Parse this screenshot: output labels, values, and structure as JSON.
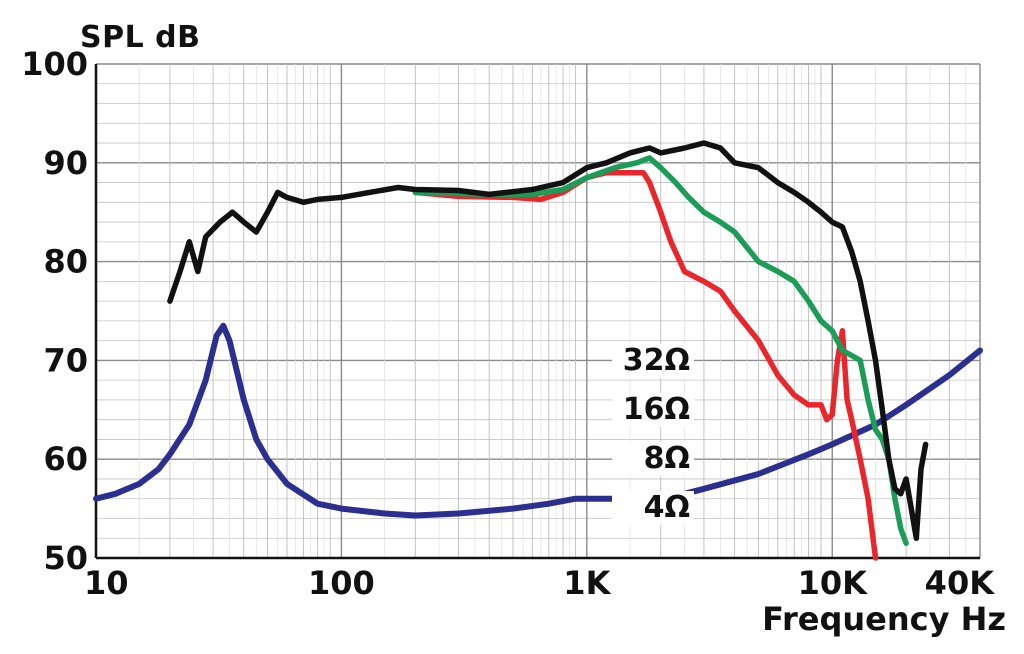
{
  "chart_data": {
    "type": "line",
    "ylabel": "SPL dB",
    "xlabel": "Frequency Hz",
    "x_scale": "log",
    "xlim": [
      10,
      40000
    ],
    "ylim": [
      50,
      100
    ],
    "grid": true,
    "x_ticks": [
      {
        "value": 10,
        "label": "10"
      },
      {
        "value": 100,
        "label": "100"
      },
      {
        "value": 1000,
        "label": "1K"
      },
      {
        "value": 10000,
        "label": "10K"
      },
      {
        "value": 40000,
        "label": "40K"
      }
    ],
    "y_ticks": [
      {
        "value": 50,
        "label": "50"
      },
      {
        "value": 60,
        "label": "60"
      },
      {
        "value": 70,
        "label": "70"
      },
      {
        "value": 80,
        "label": "80"
      },
      {
        "value": 90,
        "label": "90"
      },
      {
        "value": 100,
        "label": "100"
      }
    ],
    "series": [
      {
        "name": "4Ω",
        "color": "#2b2f8f",
        "points": [
          [
            10,
            56
          ],
          [
            12,
            56.5
          ],
          [
            15,
            57.5
          ],
          [
            18,
            59
          ],
          [
            20,
            60.5
          ],
          [
            24,
            63.5
          ],
          [
            28,
            68
          ],
          [
            31,
            72.5
          ],
          [
            33,
            73.5
          ],
          [
            35,
            72
          ],
          [
            40,
            66
          ],
          [
            45,
            62
          ],
          [
            50,
            60
          ],
          [
            60,
            57.5
          ],
          [
            80,
            55.5
          ],
          [
            100,
            55
          ],
          [
            150,
            54.5
          ],
          [
            200,
            54.3
          ],
          [
            300,
            54.5
          ],
          [
            500,
            55
          ],
          [
            700,
            55.5
          ],
          [
            900,
            56
          ],
          [
            1500,
            56
          ],
          [
            2000,
            56
          ],
          [
            2500,
            56.5
          ],
          [
            3000,
            57
          ],
          [
            5000,
            58.5
          ],
          [
            8000,
            60.5
          ],
          [
            10000,
            61.5
          ],
          [
            15000,
            63.5
          ],
          [
            20000,
            65.5
          ],
          [
            30000,
            68.5
          ],
          [
            40000,
            71
          ]
        ]
      },
      {
        "name": "8Ω",
        "color": "#e8262b",
        "points": [
          [
            200,
            87
          ],
          [
            300,
            86.6
          ],
          [
            500,
            86.5
          ],
          [
            650,
            86.3
          ],
          [
            800,
            87
          ],
          [
            1000,
            88.5
          ],
          [
            1200,
            89
          ],
          [
            1500,
            89
          ],
          [
            1700,
            89
          ],
          [
            1800,
            88
          ],
          [
            2000,
            85
          ],
          [
            2200,
            82
          ],
          [
            2500,
            79
          ],
          [
            3000,
            78
          ],
          [
            3500,
            77
          ],
          [
            4000,
            75
          ],
          [
            5000,
            72
          ],
          [
            6000,
            68.5
          ],
          [
            7000,
            66.5
          ],
          [
            8000,
            65.5
          ],
          [
            9000,
            65.5
          ],
          [
            9500,
            64
          ],
          [
            10000,
            64.5
          ],
          [
            10500,
            70
          ],
          [
            11000,
            73
          ],
          [
            11500,
            66
          ],
          [
            12000,
            64
          ],
          [
            13000,
            60
          ],
          [
            14000,
            56
          ],
          [
            15000,
            50
          ]
        ]
      },
      {
        "name": "16Ω",
        "color": "#1c9d57",
        "points": [
          [
            200,
            87
          ],
          [
            400,
            86.8
          ],
          [
            600,
            86.8
          ],
          [
            800,
            87.3
          ],
          [
            1000,
            88.5
          ],
          [
            1300,
            89.5
          ],
          [
            1600,
            90
          ],
          [
            1800,
            90.5
          ],
          [
            2000,
            89.5
          ],
          [
            2300,
            88
          ],
          [
            2600,
            86.5
          ],
          [
            3000,
            85
          ],
          [
            3500,
            84
          ],
          [
            4000,
            83
          ],
          [
            5000,
            80
          ],
          [
            6000,
            79
          ],
          [
            7000,
            78
          ],
          [
            8000,
            76
          ],
          [
            9000,
            74
          ],
          [
            10000,
            73
          ],
          [
            11000,
            71
          ],
          [
            12000,
            70.5
          ],
          [
            13000,
            70
          ],
          [
            14000,
            66
          ],
          [
            15000,
            63
          ],
          [
            16000,
            62
          ],
          [
            17000,
            60
          ],
          [
            18000,
            56
          ],
          [
            19000,
            53
          ],
          [
            20000,
            51.5
          ]
        ]
      },
      {
        "name": "32Ω",
        "color": "#111111",
        "points": [
          [
            20,
            76
          ],
          [
            22,
            79
          ],
          [
            24,
            82
          ],
          [
            26,
            79
          ],
          [
            28,
            82.5
          ],
          [
            32,
            84
          ],
          [
            36,
            85
          ],
          [
            40,
            84
          ],
          [
            45,
            83
          ],
          [
            50,
            85
          ],
          [
            55,
            87
          ],
          [
            60,
            86.5
          ],
          [
            70,
            86
          ],
          [
            80,
            86.3
          ],
          [
            100,
            86.5
          ],
          [
            130,
            87
          ],
          [
            170,
            87.5
          ],
          [
            200,
            87.3
          ],
          [
            300,
            87.2
          ],
          [
            400,
            86.8
          ],
          [
            600,
            87.3
          ],
          [
            800,
            88
          ],
          [
            1000,
            89.5
          ],
          [
            1200,
            90
          ],
          [
            1500,
            91
          ],
          [
            1800,
            91.5
          ],
          [
            2000,
            91
          ],
          [
            2500,
            91.5
          ],
          [
            3000,
            92
          ],
          [
            3500,
            91.5
          ],
          [
            4000,
            90
          ],
          [
            5000,
            89.5
          ],
          [
            6000,
            88
          ],
          [
            7000,
            87
          ],
          [
            8000,
            86
          ],
          [
            9000,
            85
          ],
          [
            10000,
            84
          ],
          [
            11000,
            83.5
          ],
          [
            12000,
            81
          ],
          [
            13000,
            78
          ],
          [
            14000,
            74
          ],
          [
            15000,
            70
          ],
          [
            16000,
            65
          ],
          [
            17000,
            60
          ],
          [
            18000,
            57
          ],
          [
            19000,
            56.5
          ],
          [
            20000,
            58
          ],
          [
            21000,
            55
          ],
          [
            22000,
            52
          ],
          [
            23000,
            59
          ],
          [
            24000,
            61.5
          ]
        ]
      }
    ],
    "legend": [
      {
        "label": "32Ω"
      },
      {
        "label": "16Ω"
      },
      {
        "label": "8Ω"
      },
      {
        "label": "4Ω"
      }
    ]
  }
}
